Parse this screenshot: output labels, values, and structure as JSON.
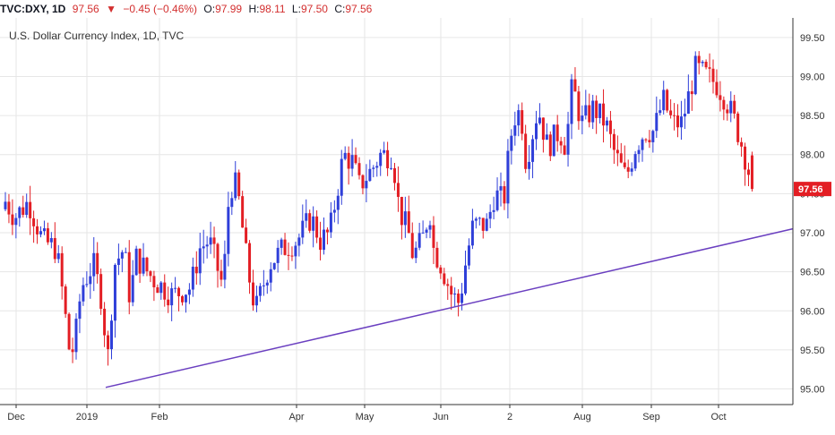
{
  "header": {
    "symbol": "TVC:DXY, 1D",
    "last": "97.56",
    "change": "−0.45 (−0.46%)",
    "open_label": "O:",
    "open": "97.99",
    "high_label": "H:",
    "high": "98.11",
    "low_label": "L:",
    "low": "97.50",
    "close_label": "C:",
    "close": "97.56"
  },
  "chart_data": {
    "type": "candlestick",
    "title": "U.S. Dollar Currency Index, 1D, TVC",
    "x_ticks": [
      "Dec",
      "2019",
      "Feb",
      "Apr",
      "May",
      "Jun",
      "2",
      "Aug",
      "Sep",
      "Oct"
    ],
    "y_ticks": [
      "95.00",
      "95.50",
      "96.00",
      "96.50",
      "97.00",
      "97.50",
      "98.00",
      "98.50",
      "99.00",
      "99.50"
    ],
    "ylim": [
      94.8,
      99.75
    ],
    "last_price_label": "97.56",
    "colors": {
      "up": "#2f3fd9",
      "down": "#e31e24",
      "trendline": "#6a3fc0",
      "grid": "#e6e6e6"
    },
    "trendline": {
      "start_value": 95.02,
      "end_value": 97.05
    },
    "waypoints": [
      [
        0,
        97.4
      ],
      [
        10,
        97.2
      ],
      [
        25,
        97.4
      ],
      [
        40,
        96.9
      ],
      [
        55,
        96.8
      ],
      [
        62,
        96.2
      ],
      [
        70,
        95.4
      ],
      [
        75,
        95.6
      ],
      [
        82,
        96.3
      ],
      [
        95,
        96.6
      ],
      [
        105,
        96.1
      ],
      [
        110,
        95.3
      ],
      [
        118,
        96.6
      ],
      [
        128,
        96.8
      ],
      [
        135,
        96.1
      ],
      [
        140,
        96.7
      ],
      [
        160,
        96.4
      ],
      [
        180,
        96.2
      ],
      [
        200,
        96.3
      ],
      [
        210,
        96.8
      ],
      [
        220,
        96.9
      ],
      [
        235,
        96.3
      ],
      [
        242,
        97.6
      ],
      [
        250,
        97.6
      ],
      [
        262,
        96.5
      ],
      [
        270,
        96.0
      ],
      [
        285,
        96.6
      ],
      [
        300,
        96.8
      ],
      [
        315,
        96.9
      ],
      [
        330,
        97.2
      ],
      [
        340,
        96.9
      ],
      [
        350,
        97.0
      ],
      [
        365,
        98.0
      ],
      [
        375,
        97.9
      ],
      [
        382,
        97.6
      ],
      [
        395,
        97.8
      ],
      [
        405,
        98.0
      ],
      [
        418,
        98.0
      ],
      [
        425,
        97.3
      ],
      [
        435,
        97.0
      ],
      [
        440,
        96.7
      ],
      [
        450,
        96.9
      ],
      [
        458,
        97.3
      ],
      [
        462,
        96.8
      ],
      [
        470,
        96.6
      ],
      [
        482,
        96.2
      ],
      [
        490,
        96.1
      ],
      [
        498,
        96.7
      ],
      [
        505,
        97.1
      ],
      [
        512,
        97.1
      ],
      [
        520,
        97.1
      ],
      [
        528,
        97.5
      ],
      [
        538,
        97.4
      ],
      [
        545,
        98.2
      ],
      [
        552,
        98.6
      ],
      [
        558,
        98.4
      ],
      [
        562,
        97.9
      ],
      [
        575,
        98.6
      ],
      [
        585,
        98.1
      ],
      [
        598,
        98.3
      ],
      [
        605,
        98.1
      ],
      [
        612,
        98.9
      ],
      [
        622,
        98.4
      ],
      [
        635,
        98.6
      ],
      [
        648,
        98.4
      ],
      [
        658,
        98.0
      ],
      [
        670,
        97.7
      ],
      [
        680,
        98.1
      ],
      [
        690,
        98.3
      ],
      [
        700,
        98.3
      ],
      [
        710,
        98.7
      ],
      [
        720,
        98.4
      ],
      [
        730,
        98.4
      ],
      [
        745,
        99.1
      ],
      [
        758,
        99.0
      ],
      [
        768,
        98.9
      ],
      [
        778,
        98.7
      ],
      [
        788,
        98.4
      ],
      [
        798,
        98.0
      ],
      [
        806,
        97.6
      ]
    ]
  }
}
